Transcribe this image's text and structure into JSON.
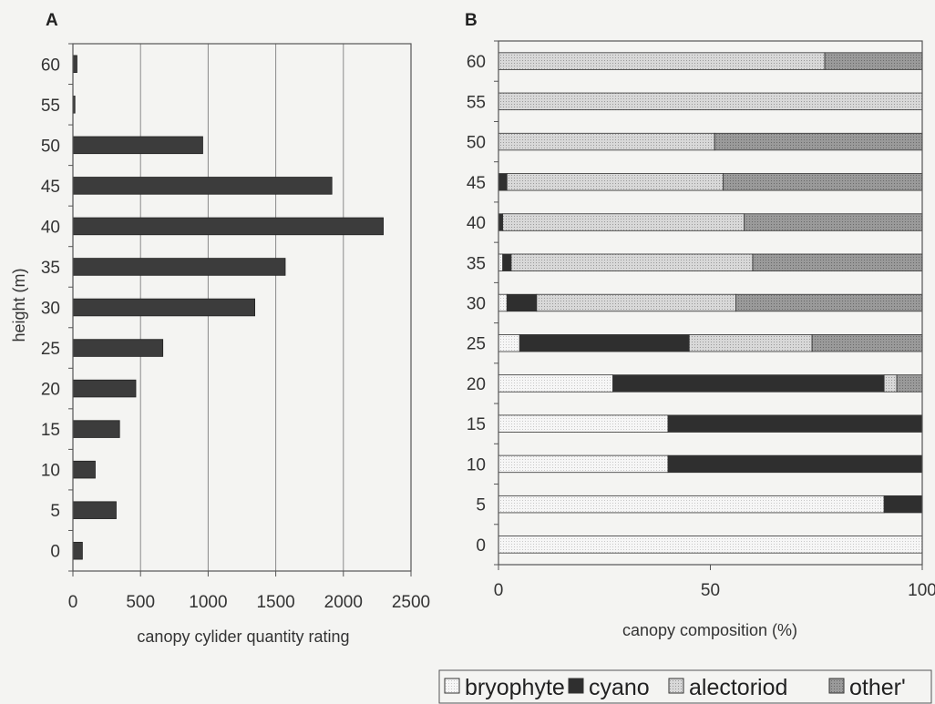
{
  "chart_data": [
    {
      "panel": "A",
      "type": "bar",
      "orientation": "horizontal",
      "categories": [
        "0",
        "5",
        "10",
        "15",
        "20",
        "25",
        "30",
        "35",
        "40",
        "45",
        "50",
        "55",
        "60"
      ],
      "values": [
        70,
        320,
        165,
        345,
        465,
        665,
        1345,
        1570,
        2295,
        1915,
        960,
        15,
        30
      ],
      "xlabel": "canopy cylider quantity rating",
      "ylabel": "height (m)",
      "xlim": [
        0,
        2500
      ],
      "xticks": [
        "0",
        "500",
        "1000",
        "1500",
        "2000",
        "2500"
      ],
      "grid": "vertical",
      "colors": {
        "bar": "#3c3c3c",
        "frame": "#555555",
        "grid": "#8a8a8a"
      }
    },
    {
      "panel": "B",
      "type": "bar",
      "orientation": "horizontal",
      "stacked": true,
      "categories": [
        "0",
        "5",
        "10",
        "15",
        "20",
        "25",
        "30",
        "35",
        "40",
        "45",
        "50",
        "55",
        "60"
      ],
      "series": [
        {
          "name": "bryophyte",
          "color": "#f2f2f2",
          "values": [
            100,
            91,
            40,
            40,
            27,
            5,
            2,
            1,
            0,
            0,
            0,
            0,
            0
          ]
        },
        {
          "name": "cyano",
          "color": "#333333",
          "values": [
            0,
            9,
            60,
            60,
            64,
            40,
            7,
            2,
            1,
            2,
            0,
            0,
            0
          ]
        },
        {
          "name": "alectoriod",
          "color": "#cfcfcf",
          "values": [
            0,
            0,
            0,
            0,
            3,
            29,
            47,
            57,
            57,
            51,
            51,
            100,
            77
          ]
        },
        {
          "name": "other'",
          "color": "#8f8f8f",
          "values": [
            0,
            0,
            0,
            0,
            6,
            26,
            44,
            40,
            42,
            47,
            49,
            0,
            23
          ]
        }
      ],
      "xlabel": "canopy composition (%)",
      "xlim": [
        0,
        100
      ],
      "xticks": [
        "0",
        "50",
        "100"
      ],
      "legend": "bottom-right"
    }
  ]
}
